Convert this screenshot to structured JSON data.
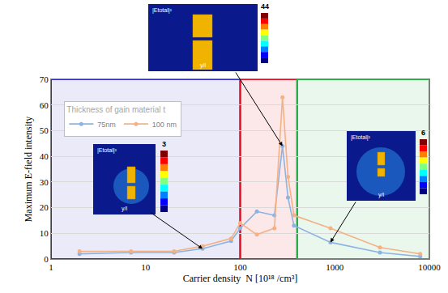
{
  "chart_data": {
    "type": "line",
    "x_label": "Carrier density  N [10¹⁸ /cm³]",
    "y_label": "Maximum E-field intensity",
    "legend_title": "Thickness of gain material t",
    "x": [
      2,
      7,
      20,
      40,
      80,
      100,
      150,
      230,
      280,
      320,
      370,
      900,
      3000,
      8000
    ],
    "series": [
      {
        "name": "75nm",
        "color": "#8db3e2",
        "values": [
          2,
          2.5,
          2.5,
          4,
          7,
          12,
          18.5,
          17,
          44,
          24,
          13,
          6.5,
          2.5,
          1
        ]
      },
      {
        "name": "100 nm",
        "color": "#f4b183",
        "values": [
          3,
          3,
          3,
          5,
          8,
          14,
          9.5,
          12,
          63,
          32,
          17,
          12,
          4.5,
          2
        ]
      }
    ],
    "xlim": [
      1,
      10000
    ],
    "ylim": [
      0,
      70
    ],
    "xticks": [
      1,
      10,
      100,
      1000,
      10000
    ],
    "yticks": [
      0,
      10,
      20,
      30,
      40,
      50,
      60,
      70
    ],
    "log": "x",
    "grid": true,
    "legend": "top left",
    "marker": "circle",
    "regions": [
      {
        "x0": 1,
        "x1": 100,
        "color": "#2f2fc8"
      },
      {
        "x0": 100,
        "x1": 400,
        "color": "#e0102a"
      },
      {
        "x0": 400,
        "x1": 10000,
        "color": "#27b14a"
      }
    ],
    "insets": [
      {
        "label": "|Etotal|²",
        "xlabel": "y/l",
        "colorbar_max": 3
      },
      {
        "label": "|Etotal|²",
        "xlabel": "y/l",
        "colorbar_max": 44
      },
      {
        "label": "|Etotal|²",
        "xlabel": "y/l",
        "colorbar_max": 6
      }
    ]
  }
}
